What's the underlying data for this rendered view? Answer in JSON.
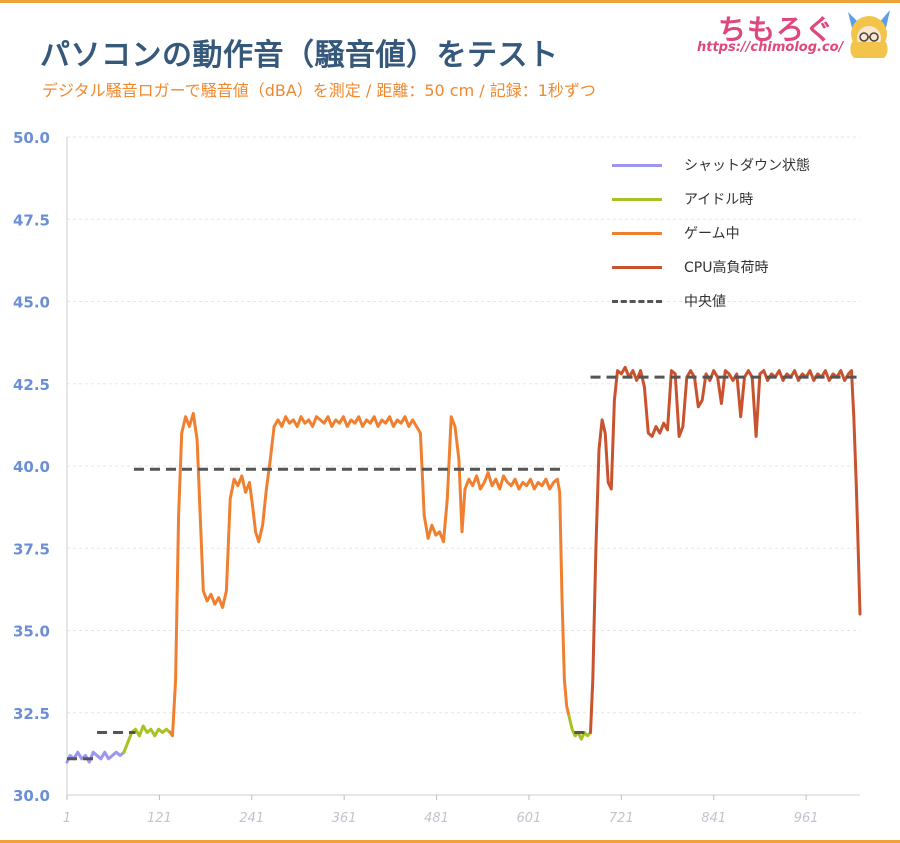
{
  "header": {
    "title": "パソコンの動作音（騒音値）をテスト",
    "subtitle": "デジタル騒音ロガーで騒音値（dBA）を測定 / 距離：50 cm / 記録：1秒ずつ",
    "brand": "ちもろぐ",
    "brand_url": "https://chimolog.co/"
  },
  "colors": {
    "shutdown": "#9c96ee",
    "idle": "#a7c222",
    "gaming": "#f08030",
    "cpu_load": "#c9532e",
    "median": "#555555",
    "axis_label": "#6b8fd6",
    "x_tick_label": "#c0c4cc"
  },
  "chart_data": {
    "type": "line",
    "title": "",
    "xlabel": "",
    "ylabel": "",
    "xlim": [
      1,
      1031
    ],
    "ylim": [
      30.0,
      50.0
    ],
    "y_ticks": [
      "30.0",
      "32.5",
      "35.0",
      "37.5",
      "40.0",
      "42.5",
      "45.0",
      "47.5",
      "50.0"
    ],
    "x_ticks": [
      "1",
      "121",
      "241",
      "361",
      "481",
      "601",
      "721",
      "841",
      "961"
    ],
    "grid": "horizontal",
    "legend_position": "top-right",
    "legend": [
      "シャットダウン状態",
      "アイドル時",
      "ゲーム中",
      "CPU高負荷時",
      "中央値"
    ],
    "series": [
      {
        "name": "シャットダウン状態",
        "color_key": "shutdown",
        "points": [
          [
            1,
            31.0
          ],
          [
            5,
            31.2
          ],
          [
            10,
            31.1
          ],
          [
            15,
            31.3
          ],
          [
            20,
            31.1
          ],
          [
            25,
            31.2
          ],
          [
            30,
            31.0
          ],
          [
            35,
            31.3
          ],
          [
            40,
            31.2
          ],
          [
            45,
            31.1
          ],
          [
            50,
            31.3
          ],
          [
            55,
            31.1
          ],
          [
            60,
            31.2
          ],
          [
            65,
            31.3
          ],
          [
            70,
            31.2
          ],
          [
            75,
            31.3
          ]
        ]
      },
      {
        "name": "アイドル時",
        "color_key": "idle",
        "points": [
          [
            75,
            31.3
          ],
          [
            80,
            31.6
          ],
          [
            85,
            31.9
          ],
          [
            90,
            32.0
          ],
          [
            95,
            31.8
          ],
          [
            100,
            32.1
          ],
          [
            105,
            31.9
          ],
          [
            110,
            32.0
          ],
          [
            115,
            31.8
          ],
          [
            120,
            32.0
          ],
          [
            125,
            31.9
          ],
          [
            130,
            32.0
          ],
          [
            135,
            31.9
          ]
        ]
      },
      {
        "name": "ゲーム中",
        "color_key": "gaming",
        "points": [
          [
            135,
            31.9
          ],
          [
            138,
            31.8
          ],
          [
            142,
            33.5
          ],
          [
            146,
            38.5
          ],
          [
            150,
            41.0
          ],
          [
            155,
            41.5
          ],
          [
            160,
            41.2
          ],
          [
            165,
            41.6
          ],
          [
            170,
            40.8
          ],
          [
            174,
            38.5
          ],
          [
            178,
            36.2
          ],
          [
            183,
            35.9
          ],
          [
            188,
            36.1
          ],
          [
            193,
            35.8
          ],
          [
            198,
            36.0
          ],
          [
            203,
            35.7
          ],
          [
            208,
            36.2
          ],
          [
            213,
            39.0
          ],
          [
            218,
            39.6
          ],
          [
            223,
            39.4
          ],
          [
            228,
            39.7
          ],
          [
            233,
            39.2
          ],
          [
            238,
            39.5
          ],
          [
            242,
            38.8
          ],
          [
            246,
            38.0
          ],
          [
            250,
            37.7
          ],
          [
            255,
            38.2
          ],
          [
            260,
            39.3
          ],
          [
            265,
            40.2
          ],
          [
            270,
            41.2
          ],
          [
            275,
            41.4
          ],
          [
            280,
            41.2
          ],
          [
            285,
            41.5
          ],
          [
            290,
            41.3
          ],
          [
            295,
            41.4
          ],
          [
            300,
            41.2
          ],
          [
            305,
            41.5
          ],
          [
            310,
            41.3
          ],
          [
            315,
            41.4
          ],
          [
            320,
            41.2
          ],
          [
            325,
            41.5
          ],
          [
            330,
            41.4
          ],
          [
            335,
            41.3
          ],
          [
            340,
            41.5
          ],
          [
            345,
            41.2
          ],
          [
            350,
            41.4
          ],
          [
            355,
            41.3
          ],
          [
            360,
            41.5
          ],
          [
            365,
            41.2
          ],
          [
            370,
            41.4
          ],
          [
            375,
            41.3
          ],
          [
            380,
            41.5
          ],
          [
            385,
            41.2
          ],
          [
            390,
            41.4
          ],
          [
            395,
            41.3
          ],
          [
            400,
            41.5
          ],
          [
            405,
            41.2
          ],
          [
            410,
            41.4
          ],
          [
            415,
            41.3
          ],
          [
            420,
            41.5
          ],
          [
            425,
            41.2
          ],
          [
            430,
            41.4
          ],
          [
            435,
            41.3
          ],
          [
            440,
            41.5
          ],
          [
            445,
            41.2
          ],
          [
            450,
            41.4
          ],
          [
            455,
            41.2
          ],
          [
            460,
            41.0
          ],
          [
            465,
            38.5
          ],
          [
            470,
            37.8
          ],
          [
            475,
            38.2
          ],
          [
            480,
            37.9
          ],
          [
            485,
            38.0
          ],
          [
            490,
            37.7
          ],
          [
            495,
            39.0
          ],
          [
            500,
            41.5
          ],
          [
            505,
            41.2
          ],
          [
            510,
            40.2
          ],
          [
            514,
            38.0
          ],
          [
            518,
            39.3
          ],
          [
            523,
            39.6
          ],
          [
            528,
            39.4
          ],
          [
            533,
            39.7
          ],
          [
            538,
            39.3
          ],
          [
            543,
            39.5
          ],
          [
            548,
            39.8
          ],
          [
            553,
            39.4
          ],
          [
            558,
            39.6
          ],
          [
            563,
            39.3
          ],
          [
            568,
            39.7
          ],
          [
            573,
            39.5
          ],
          [
            578,
            39.4
          ],
          [
            583,
            39.6
          ],
          [
            588,
            39.3
          ],
          [
            593,
            39.5
          ],
          [
            598,
            39.4
          ],
          [
            603,
            39.6
          ],
          [
            608,
            39.3
          ],
          [
            613,
            39.5
          ],
          [
            618,
            39.4
          ],
          [
            623,
            39.6
          ],
          [
            628,
            39.3
          ],
          [
            633,
            39.5
          ],
          [
            638,
            39.6
          ],
          [
            641,
            39.2
          ],
          [
            644,
            36.0
          ],
          [
            647,
            33.5
          ],
          [
            650,
            32.7
          ],
          [
            653,
            32.4
          ]
        ]
      },
      {
        "name": "アイドル時",
        "color_key": "idle",
        "points": [
          [
            653,
            32.4
          ],
          [
            657,
            32.0
          ],
          [
            661,
            31.8
          ],
          [
            665,
            31.9
          ],
          [
            669,
            31.7
          ],
          [
            673,
            31.9
          ],
          [
            677,
            31.8
          ],
          [
            681,
            31.9
          ]
        ]
      },
      {
        "name": "CPU高負荷時",
        "color_key": "cpu_load",
        "points": [
          [
            681,
            31.9
          ],
          [
            684,
            33.5
          ],
          [
            688,
            37.5
          ],
          [
            692,
            40.5
          ],
          [
            696,
            41.4
          ],
          [
            700,
            41.0
          ],
          [
            704,
            39.5
          ],
          [
            708,
            39.3
          ],
          [
            712,
            42.0
          ],
          [
            716,
            42.9
          ],
          [
            721,
            42.8
          ],
          [
            726,
            43.0
          ],
          [
            731,
            42.7
          ],
          [
            736,
            42.9
          ],
          [
            741,
            42.6
          ],
          [
            746,
            42.9
          ],
          [
            751,
            42.4
          ],
          [
            756,
            41.0
          ],
          [
            761,
            40.9
          ],
          [
            766,
            41.2
          ],
          [
            771,
            41.0
          ],
          [
            776,
            41.3
          ],
          [
            781,
            41.1
          ],
          [
            786,
            42.9
          ],
          [
            791,
            42.8
          ],
          [
            796,
            40.9
          ],
          [
            801,
            41.2
          ],
          [
            806,
            42.7
          ],
          [
            811,
            42.9
          ],
          [
            816,
            42.7
          ],
          [
            821,
            41.8
          ],
          [
            826,
            42.0
          ],
          [
            831,
            42.8
          ],
          [
            836,
            42.6
          ],
          [
            841,
            42.9
          ],
          [
            846,
            42.7
          ],
          [
            851,
            41.9
          ],
          [
            856,
            42.9
          ],
          [
            861,
            42.8
          ],
          [
            866,
            42.6
          ],
          [
            871,
            42.8
          ],
          [
            876,
            41.5
          ],
          [
            881,
            42.7
          ],
          [
            886,
            42.9
          ],
          [
            891,
            42.7
          ],
          [
            896,
            40.9
          ],
          [
            901,
            42.8
          ],
          [
            906,
            42.9
          ],
          [
            911,
            42.6
          ],
          [
            916,
            42.8
          ],
          [
            921,
            42.7
          ],
          [
            926,
            42.9
          ],
          [
            931,
            42.6
          ],
          [
            936,
            42.8
          ],
          [
            941,
            42.7
          ],
          [
            946,
            42.9
          ],
          [
            951,
            42.6
          ],
          [
            956,
            42.8
          ],
          [
            961,
            42.7
          ],
          [
            966,
            42.9
          ],
          [
            971,
            42.6
          ],
          [
            976,
            42.8
          ],
          [
            981,
            42.7
          ],
          [
            986,
            42.9
          ],
          [
            991,
            42.6
          ],
          [
            996,
            42.8
          ],
          [
            1001,
            42.7
          ],
          [
            1006,
            42.9
          ],
          [
            1011,
            42.6
          ],
          [
            1016,
            42.8
          ],
          [
            1020,
            42.9
          ],
          [
            1023,
            41.5
          ],
          [
            1026,
            39.5
          ],
          [
            1028,
            38.0
          ],
          [
            1031,
            35.5
          ]
        ]
      },
      {
        "name": "中央値",
        "color_key": "median",
        "dashed": true,
        "segments": [
          {
            "x": [
              1,
              40
            ],
            "y": 31.1
          },
          {
            "x": [
              40,
              90
            ],
            "y": 31.9
          },
          {
            "x": [
              88,
              645
            ],
            "y": 39.9
          },
          {
            "x": [
              660,
              680
            ],
            "y": 31.9
          },
          {
            "x": [
              681,
              1031
            ],
            "y": 42.7
          }
        ]
      }
    ]
  }
}
